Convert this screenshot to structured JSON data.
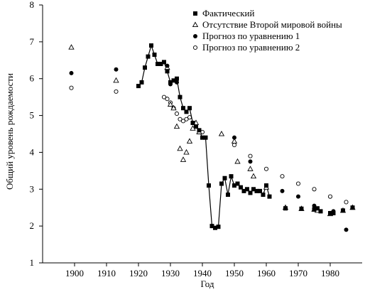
{
  "chart_data": {
    "type": "scatter",
    "xlabel": "Год",
    "ylabel": "Общий уровень рождаемости",
    "xlim": [
      1890,
      1990
    ],
    "ylim": [
      1,
      8
    ],
    "xticks": [
      1900,
      1910,
      1920,
      1930,
      1940,
      1950,
      1960,
      1970,
      1980
    ],
    "yticks": [
      1,
      2,
      3,
      4,
      5,
      6,
      7,
      8
    ],
    "legend_position": "top-right",
    "series": [
      {
        "name": "Фактический",
        "marker": "filled-square",
        "connected": true,
        "points": [
          [
            1920,
            5.8
          ],
          [
            1921,
            5.9
          ],
          [
            1922,
            6.3
          ],
          [
            1923,
            6.6
          ],
          [
            1924,
            6.9
          ],
          [
            1925,
            6.65
          ],
          [
            1926,
            6.4
          ],
          [
            1927,
            6.4
          ],
          [
            1928,
            6.45
          ],
          [
            1929,
            6.2
          ],
          [
            1930,
            5.9
          ],
          [
            1931,
            5.95
          ],
          [
            1932,
            6.0
          ],
          [
            1933,
            5.5
          ],
          [
            1934,
            5.2
          ],
          [
            1935,
            5.1
          ],
          [
            1936,
            5.2
          ],
          [
            1937,
            4.8
          ],
          [
            1938,
            4.7
          ],
          [
            1939,
            4.6
          ],
          [
            1940,
            4.4
          ],
          [
            1941,
            4.4
          ],
          [
            1942,
            3.1
          ],
          [
            1943,
            2.0
          ],
          [
            1944,
            1.95
          ],
          [
            1945,
            1.98
          ],
          [
            1946,
            3.15
          ],
          [
            1947,
            3.3
          ],
          [
            1948,
            2.85
          ],
          [
            1949,
            3.35
          ],
          [
            1950,
            3.1
          ],
          [
            1951,
            3.15
          ],
          [
            1952,
            3.05
          ],
          [
            1953,
            2.95
          ],
          [
            1954,
            3.0
          ],
          [
            1955,
            2.9
          ],
          [
            1956,
            3.0
          ],
          [
            1957,
            2.95
          ],
          [
            1958,
            2.95
          ],
          [
            1959,
            2.85
          ],
          [
            1960,
            3.1
          ],
          [
            1961,
            2.8
          ],
          [
            1966,
            2.48
          ],
          [
            1971,
            2.47
          ],
          [
            1975,
            2.45
          ],
          [
            1976,
            2.48
          ],
          [
            1977,
            2.4
          ],
          [
            1980,
            2.35
          ],
          [
            1981,
            2.35
          ],
          [
            1984,
            2.42
          ],
          [
            1987,
            2.5
          ]
        ]
      },
      {
        "name": "Отсутствие Второй мировой войны",
        "marker": "open-triangle",
        "connected": false,
        "points": [
          [
            1899,
            6.85
          ],
          [
            1913,
            5.95
          ],
          [
            1929,
            6.3
          ],
          [
            1930,
            5.3
          ],
          [
            1931,
            5.2
          ],
          [
            1932,
            4.7
          ],
          [
            1933,
            4.1
          ],
          [
            1934,
            3.8
          ],
          [
            1935,
            4.0
          ],
          [
            1936,
            4.3
          ],
          [
            1937,
            4.65
          ],
          [
            1938,
            4.8
          ],
          [
            1939,
            4.55
          ],
          [
            1946,
            4.5
          ],
          [
            1950,
            4.3
          ],
          [
            1951,
            3.75
          ],
          [
            1955,
            3.55
          ],
          [
            1956,
            3.35
          ],
          [
            1960,
            3.05
          ],
          [
            1966,
            2.5
          ],
          [
            1971,
            2.47
          ],
          [
            1975,
            2.45
          ],
          [
            1976,
            2.42
          ],
          [
            1980,
            2.33
          ],
          [
            1984,
            2.42
          ],
          [
            1987,
            2.5
          ]
        ]
      },
      {
        "name": "Прогноз по уравнению 1",
        "marker": "filled-circle",
        "connected": false,
        "points": [
          [
            1899,
            6.15
          ],
          [
            1913,
            6.25
          ],
          [
            1929,
            6.35
          ],
          [
            1930,
            5.85
          ],
          [
            1932,
            5.9
          ],
          [
            1950,
            4.4
          ],
          [
            1955,
            3.75
          ],
          [
            1960,
            3.1
          ],
          [
            1965,
            2.95
          ],
          [
            1970,
            2.8
          ],
          [
            1975,
            2.55
          ],
          [
            1981,
            2.4
          ],
          [
            1985,
            1.9
          ]
        ]
      },
      {
        "name": "Прогноз по уравнению 2",
        "marker": "open-circle",
        "connected": false,
        "points": [
          [
            1899,
            5.75
          ],
          [
            1913,
            5.65
          ],
          [
            1928,
            5.5
          ],
          [
            1929,
            5.45
          ],
          [
            1930,
            5.35
          ],
          [
            1931,
            5.2
          ],
          [
            1932,
            5.05
          ],
          [
            1933,
            4.9
          ],
          [
            1934,
            4.85
          ],
          [
            1935,
            4.9
          ],
          [
            1936,
            4.95
          ],
          [
            1937,
            4.8
          ],
          [
            1938,
            4.75
          ],
          [
            1939,
            4.55
          ],
          [
            1940,
            4.55
          ],
          [
            1950,
            4.2
          ],
          [
            1955,
            3.9
          ],
          [
            1960,
            3.55
          ],
          [
            1965,
            3.35
          ],
          [
            1970,
            3.15
          ],
          [
            1975,
            3.0
          ],
          [
            1980,
            2.8
          ],
          [
            1985,
            2.65
          ]
        ]
      }
    ]
  }
}
